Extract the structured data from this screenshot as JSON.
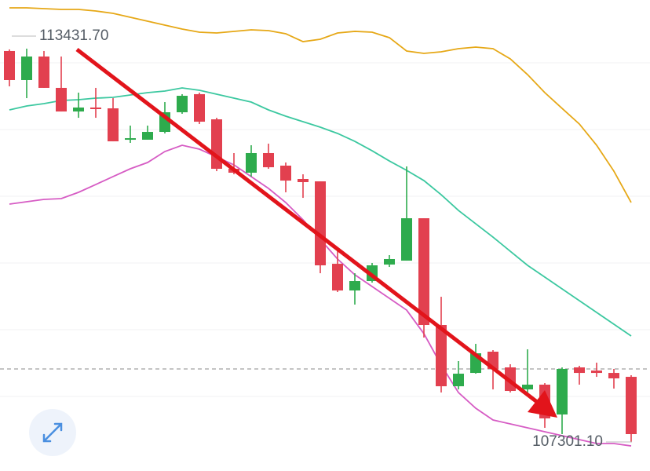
{
  "chart_data": {
    "type": "candlestick",
    "ylim": [
      106848,
      114190
    ],
    "up_color": "#2eab4d",
    "down_color": "#e2404f",
    "candles": [
      {
        "open": 113395,
        "high": 113420,
        "low": 112844,
        "close": 112942
      },
      {
        "open": 112942,
        "high": 113431.7,
        "low": 112660,
        "close": 113309
      },
      {
        "open": 113309,
        "high": 113395,
        "low": 112820,
        "close": 112820
      },
      {
        "open": 112820,
        "high": 113309,
        "low": 112452,
        "close": 112452
      },
      {
        "open": 112452,
        "high": 112746,
        "low": 112354,
        "close": 112514
      },
      {
        "open": 112514,
        "high": 112820,
        "low": 112354,
        "close": 112489
      },
      {
        "open": 112501,
        "high": 112660,
        "low": 111987,
        "close": 111987
      },
      {
        "open": 112012,
        "high": 112232,
        "low": 111963,
        "close": 112036
      },
      {
        "open": 112012,
        "high": 112232,
        "low": 112012,
        "close": 112134
      },
      {
        "open": 112134,
        "high": 112599,
        "low": 112110,
        "close": 112440
      },
      {
        "open": 112440,
        "high": 112722,
        "low": 112416,
        "close": 112697
      },
      {
        "open": 112722,
        "high": 112746,
        "low": 112257,
        "close": 112293
      },
      {
        "open": 112330,
        "high": 112354,
        "low": 111522,
        "close": 111559
      },
      {
        "open": 111559,
        "high": 111804,
        "low": 111473,
        "close": 111498
      },
      {
        "open": 111498,
        "high": 111926,
        "low": 111437,
        "close": 111804
      },
      {
        "open": 111804,
        "high": 111951,
        "low": 111559,
        "close": 111583
      },
      {
        "open": 111608,
        "high": 111657,
        "low": 111192,
        "close": 111375
      },
      {
        "open": 111400,
        "high": 111473,
        "low": 111106,
        "close": 111351
      },
      {
        "open": 111363,
        "high": 111363,
        "low": 109931,
        "close": 110054
      },
      {
        "open": 110078,
        "high": 110299,
        "low": 109638,
        "close": 109662
      },
      {
        "open": 109662,
        "high": 109931,
        "low": 109442,
        "close": 109809
      },
      {
        "open": 109809,
        "high": 110091,
        "low": 109785,
        "close": 110054
      },
      {
        "open": 110066,
        "high": 110213,
        "low": 110029,
        "close": 110152
      },
      {
        "open": 110127,
        "high": 111596,
        "low": 110127,
        "close": 110788
      },
      {
        "open": 110788,
        "high": 110788,
        "low": 108928,
        "close": 109124
      },
      {
        "open": 109124,
        "high": 109564,
        "low": 108072,
        "close": 108169
      },
      {
        "open": 108169,
        "high": 108561,
        "low": 108120,
        "close": 108365
      },
      {
        "open": 108377,
        "high": 108830,
        "low": 108365,
        "close": 108683
      },
      {
        "open": 108708,
        "high": 108732,
        "low": 108120,
        "close": 108439
      },
      {
        "open": 108463,
        "high": 108512,
        "low": 108072,
        "close": 108096
      },
      {
        "open": 108120,
        "high": 108745,
        "low": 108072,
        "close": 108194
      },
      {
        "open": 108194,
        "high": 108218,
        "low": 107521,
        "close": 107668
      },
      {
        "open": 107729,
        "high": 108463,
        "low": 107423,
        "close": 108439
      },
      {
        "open": 108463,
        "high": 108488,
        "low": 108194,
        "close": 108377
      },
      {
        "open": 108414,
        "high": 108537,
        "low": 108316,
        "close": 108377
      },
      {
        "open": 108377,
        "high": 108439,
        "low": 108133,
        "close": 108292
      },
      {
        "open": 108316,
        "high": 108341,
        "low": 107301.1,
        "close": 107423
      }
    ],
    "series": [
      {
        "color": "#e6a817",
        "values": [
          114068,
          114068,
          114055,
          114043,
          114043,
          114019,
          113982,
          113921,
          113860,
          113798,
          113737,
          113688,
          113676,
          113701,
          113725,
          113713,
          113664,
          113541,
          113578,
          113676,
          113701,
          113688,
          113603,
          113395,
          113358,
          113382,
          113431,
          113456,
          113431,
          113272,
          113027,
          112746,
          112501,
          112257,
          111926,
          111522,
          111033
        ]
      },
      {
        "color": "#3cc8a0",
        "values": [
          112477,
          112538,
          112575,
          112624,
          112636,
          112660,
          112673,
          112709,
          112746,
          112771,
          112819,
          112783,
          112722,
          112660,
          112599,
          112477,
          112379,
          112293,
          112208,
          112110,
          111987,
          111840,
          111681,
          111535,
          111375,
          111155,
          110910,
          110702,
          110494,
          110274,
          110054,
          109870,
          109687,
          109503,
          109320,
          109136,
          108953
        ]
      },
      {
        "color": "#d65cc4",
        "values": [
          111008,
          111045,
          111082,
          111094,
          111192,
          111314,
          111437,
          111559,
          111657,
          111828,
          111926,
          111865,
          111743,
          111620,
          111437,
          111253,
          111033,
          110764,
          110458,
          110152,
          109907,
          109723,
          109540,
          109356,
          108989,
          108500,
          108071,
          107827,
          107643,
          107582,
          107521,
          107460,
          107398,
          107337,
          107276,
          107276,
          107239
        ]
      }
    ],
    "current_price": 108439,
    "annotations": [
      {
        "text": "113431.70",
        "value": 113431.7
      },
      {
        "text": "107301.10",
        "value": 107301.1
      }
    ]
  }
}
